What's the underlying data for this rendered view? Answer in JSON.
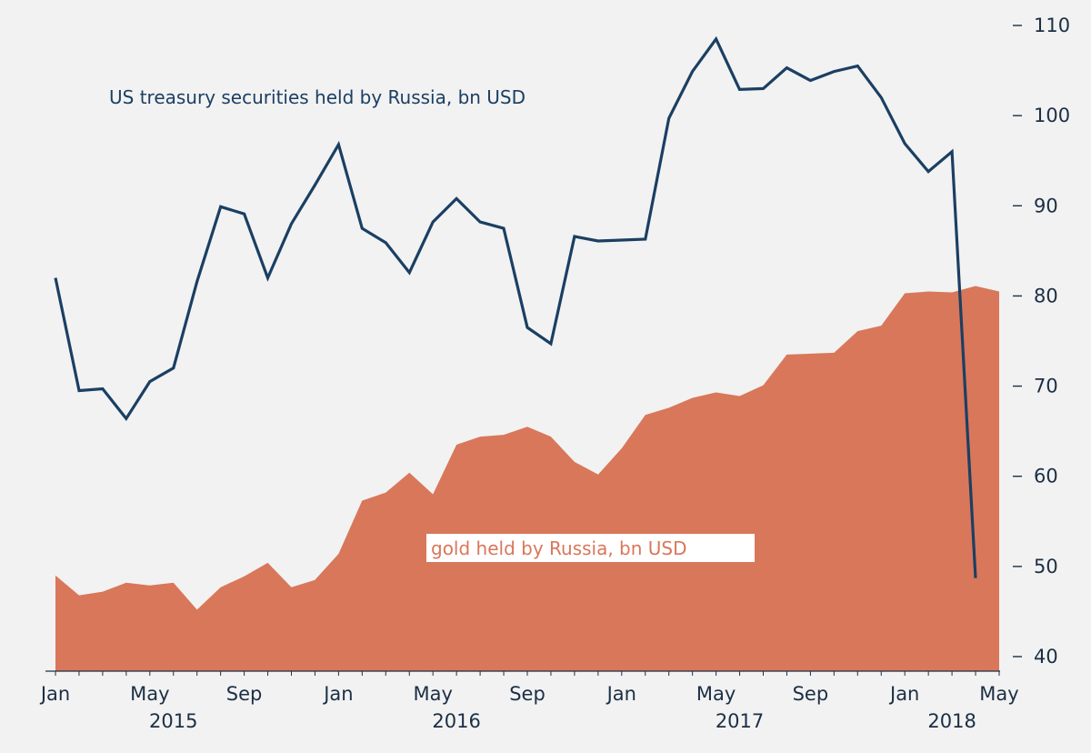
{
  "chart_data": {
    "type": "line",
    "title": "",
    "ylim": [
      40,
      110
    ],
    "y_ticks": [
      40,
      50,
      60,
      70,
      80,
      90,
      100,
      110
    ],
    "y_tick_labels": [
      "40",
      "50",
      "60",
      "70",
      "80",
      "90",
      "100",
      "110"
    ],
    "x": [
      "2015-01",
      "2015-02",
      "2015-03",
      "2015-04",
      "2015-05",
      "2015-06",
      "2015-07",
      "2015-08",
      "2015-09",
      "2015-10",
      "2015-11",
      "2015-12",
      "2016-01",
      "2016-02",
      "2016-03",
      "2016-04",
      "2016-05",
      "2016-06",
      "2016-07",
      "2016-08",
      "2016-09",
      "2016-10",
      "2016-11",
      "2016-12",
      "2017-01",
      "2017-02",
      "2017-03",
      "2017-04",
      "2017-05",
      "2017-06",
      "2017-07",
      "2017-08",
      "2017-09",
      "2017-10",
      "2017-11",
      "2017-12",
      "2018-01",
      "2018-02",
      "2018-03",
      "2018-04",
      "2018-05"
    ],
    "x_tick_labels": [
      {
        "x": "2015-01",
        "label": "Jan"
      },
      {
        "x": "2015-05",
        "label": "May"
      },
      {
        "x": "2015-09",
        "label": "Sep"
      },
      {
        "x": "2016-01",
        "label": "Jan"
      },
      {
        "x": "2016-05",
        "label": "May"
      },
      {
        "x": "2016-09",
        "label": "Sep"
      },
      {
        "x": "2017-01",
        "label": "Jan"
      },
      {
        "x": "2017-05",
        "label": "May"
      },
      {
        "x": "2017-09",
        "label": "Sep"
      },
      {
        "x": "2018-01",
        "label": "Jan"
      },
      {
        "x": "2018-05",
        "label": "May"
      }
    ],
    "year_labels": [
      {
        "x": "2015-06",
        "label": "2015"
      },
      {
        "x": "2016-06",
        "label": "2016"
      },
      {
        "x": "2017-06",
        "label": "2017"
      },
      {
        "x": "2018-03",
        "label": "2018"
      }
    ],
    "series": [
      {
        "name": "US treasury securities held by Russia, bn USD",
        "kind": "line",
        "color": "#1b3f63",
        "x": [
          "2015-01",
          "2015-02",
          "2015-03",
          "2015-04",
          "2015-05",
          "2015-06",
          "2015-07",
          "2015-08",
          "2015-09",
          "2015-10",
          "2015-11",
          "2015-12",
          "2016-01",
          "2016-02",
          "2016-03",
          "2016-04",
          "2016-05",
          "2016-06",
          "2016-07",
          "2016-08",
          "2016-09",
          "2016-10",
          "2016-11",
          "2016-12",
          "2017-01",
          "2017-02",
          "2017-03",
          "2017-04",
          "2017-05",
          "2017-06",
          "2017-07",
          "2017-08",
          "2017-09",
          "2017-10",
          "2017-11",
          "2017-12",
          "2018-01",
          "2018-02",
          "2018-03",
          "2018-04"
        ],
        "values": [
          82.0,
          69.5,
          69.7,
          66.4,
          70.5,
          72.0,
          81.6,
          89.9,
          89.1,
          82.0,
          88.0,
          92.3,
          96.8,
          87.5,
          85.9,
          82.6,
          88.2,
          90.8,
          88.2,
          87.5,
          76.5,
          74.7,
          86.6,
          86.1,
          86.2,
          86.3,
          99.7,
          104.9,
          108.5,
          102.9,
          103.0,
          105.3,
          103.9,
          104.9,
          105.5,
          102.0,
          96.9,
          93.8,
          96.0,
          48.7
        ]
      },
      {
        "name": "gold held by Russia, bn USD",
        "kind": "area",
        "color": "#d9775a",
        "values": [
          49.0,
          46.8,
          47.2,
          48.2,
          47.9,
          48.2,
          45.2,
          47.7,
          48.9,
          50.4,
          47.7,
          48.5,
          51.4,
          57.3,
          58.2,
          60.4,
          58.0,
          63.5,
          64.4,
          64.6,
          65.5,
          64.4,
          61.6,
          60.2,
          63.1,
          66.8,
          67.6,
          68.7,
          69.3,
          68.9,
          70.1,
          73.5,
          73.6,
          73.7,
          76.1,
          76.7,
          80.3,
          80.5,
          80.4,
          81.1,
          80.5
        ]
      }
    ],
    "annotations": [
      {
        "text": "US treasury securities held by Russia, bn USD",
        "series": 0
      },
      {
        "text": "gold held by Russia, bn USD",
        "series": 1
      }
    ]
  }
}
